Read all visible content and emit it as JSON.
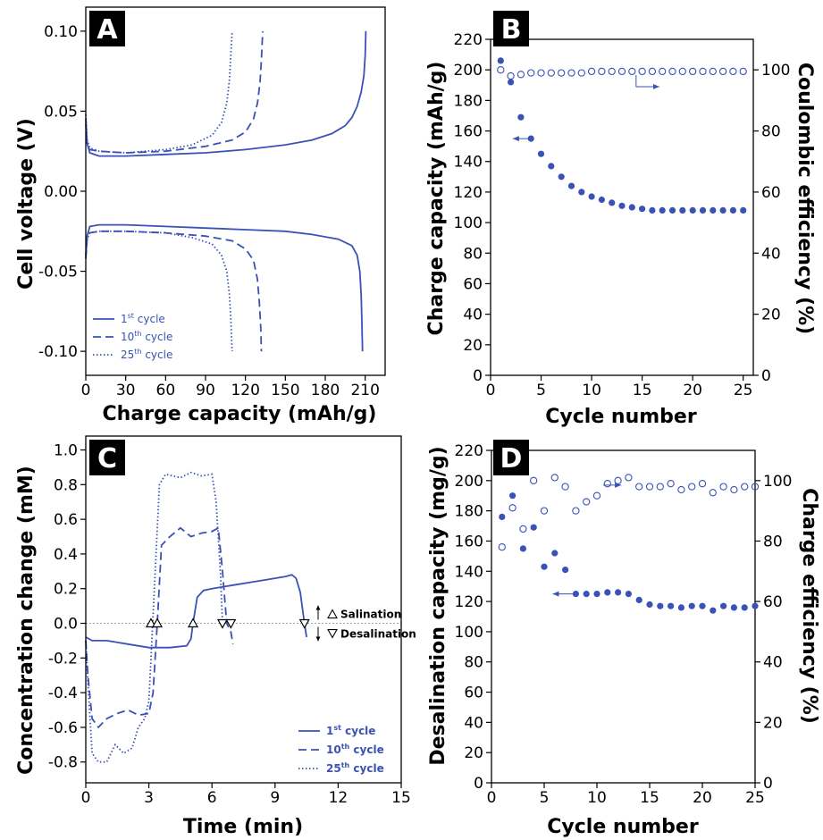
{
  "colors": {
    "series": "#3a52b5",
    "axis": "#000000"
  },
  "chart_data": [
    {
      "panel_label": "A",
      "type": "line",
      "xlabel": "Charge capacity (mAh/g)",
      "ylabel": "Cell voltage (V)",
      "xlim": [
        0,
        225
      ],
      "ylim": [
        -0.115,
        0.115
      ],
      "xticks": [
        0,
        30,
        60,
        90,
        120,
        150,
        180,
        210
      ],
      "yticks": [
        -0.1,
        -0.05,
        0.0,
        0.05,
        0.1
      ],
      "yticks_labels": [
        "-0.10",
        "-0.05",
        "0.00",
        "0.05",
        "0.10"
      ],
      "legend_position": "bottom-left",
      "series": [
        {
          "name": "1st cycle",
          "name_base": "1",
          "name_sup": "st",
          "name_tail": " cycle",
          "dash": "solid",
          "charge": [
            [
              0,
              0.045
            ],
            [
              1,
              0.03
            ],
            [
              3,
              0.024
            ],
            [
              10,
              0.022
            ],
            [
              30,
              0.022
            ],
            [
              60,
              0.023
            ],
            [
              90,
              0.024
            ],
            [
              120,
              0.026
            ],
            [
              150,
              0.029
            ],
            [
              170,
              0.032
            ],
            [
              185,
              0.036
            ],
            [
              195,
              0.041
            ],
            [
              200,
              0.046
            ],
            [
              204,
              0.053
            ],
            [
              207,
              0.062
            ],
            [
              209,
              0.072
            ],
            [
              210,
              0.085
            ],
            [
              210.5,
              0.1
            ]
          ],
          "discharge": [
            [
              0,
              -0.04
            ],
            [
              1,
              -0.028
            ],
            [
              3,
              -0.022
            ],
            [
              10,
              -0.021
            ],
            [
              30,
              -0.021
            ],
            [
              60,
              -0.022
            ],
            [
              90,
              -0.023
            ],
            [
              120,
              -0.024
            ],
            [
              150,
              -0.025
            ],
            [
              170,
              -0.027
            ],
            [
              190,
              -0.03
            ],
            [
              200,
              -0.034
            ],
            [
              204,
              -0.04
            ],
            [
              206,
              -0.05
            ],
            [
              207,
              -0.065
            ],
            [
              207.5,
              -0.08
            ],
            [
              208,
              -0.1
            ]
          ]
        },
        {
          "name": "10th cycle",
          "name_base": "10",
          "name_sup": "th",
          "name_tail": " cycle",
          "dash": "dash",
          "charge": [
            [
              0,
              0.042
            ],
            [
              1,
              0.03
            ],
            [
              3,
              0.026
            ],
            [
              10,
              0.025
            ],
            [
              30,
              0.024
            ],
            [
              60,
              0.025
            ],
            [
              90,
              0.028
            ],
            [
              110,
              0.032
            ],
            [
              120,
              0.037
            ],
            [
              126,
              0.045
            ],
            [
              129,
              0.055
            ],
            [
              131,
              0.068
            ],
            [
              132,
              0.082
            ],
            [
              133,
              0.1
            ]
          ],
          "discharge": [
            [
              0,
              -0.042
            ],
            [
              1,
              -0.03
            ],
            [
              3,
              -0.026
            ],
            [
              10,
              -0.025
            ],
            [
              30,
              -0.025
            ],
            [
              60,
              -0.026
            ],
            [
              90,
              -0.028
            ],
            [
              110,
              -0.031
            ],
            [
              120,
              -0.036
            ],
            [
              126,
              -0.043
            ],
            [
              129,
              -0.055
            ],
            [
              130.5,
              -0.07
            ],
            [
              131.5,
              -0.085
            ],
            [
              132,
              -0.1
            ]
          ]
        },
        {
          "name": "25th cycle",
          "name_base": "25",
          "name_sup": "th",
          "name_tail": " cycle",
          "dash": "dot",
          "charge": [
            [
              0,
              0.048
            ],
            [
              1,
              0.032
            ],
            [
              3,
              0.027
            ],
            [
              10,
              0.025
            ],
            [
              30,
              0.024
            ],
            [
              60,
              0.026
            ],
            [
              80,
              0.029
            ],
            [
              95,
              0.035
            ],
            [
              102,
              0.043
            ],
            [
              106,
              0.055
            ],
            [
              108,
              0.07
            ],
            [
              109,
              0.085
            ],
            [
              110,
              0.1
            ]
          ],
          "discharge": [
            [
              0,
              -0.042
            ],
            [
              1,
              -0.03
            ],
            [
              3,
              -0.026
            ],
            [
              10,
              -0.025
            ],
            [
              30,
              -0.025
            ],
            [
              60,
              -0.026
            ],
            [
              80,
              -0.029
            ],
            [
              95,
              -0.033
            ],
            [
              102,
              -0.04
            ],
            [
              106,
              -0.05
            ],
            [
              108,
              -0.065
            ],
            [
              109,
              -0.08
            ],
            [
              110,
              -0.1
            ]
          ]
        }
      ]
    },
    {
      "panel_label": "B",
      "type": "scatter",
      "xlabel": "Cycle number",
      "ylabel": "Charge capacity (mAh/g)",
      "y2label": "Coulombic efficiency (%)",
      "xlim": [
        0,
        26
      ],
      "ylim": [
        0,
        220
      ],
      "y2lim": [
        0,
        110
      ],
      "xticks": [
        0,
        5,
        10,
        15,
        20,
        25
      ],
      "yticks": [
        0,
        20,
        40,
        60,
        80,
        100,
        120,
        140,
        160,
        180,
        200,
        220
      ],
      "y2ticks": [
        0,
        20,
        40,
        60,
        80,
        100
      ],
      "series": [
        {
          "axis": "left",
          "marker": "filled",
          "x": [
            1,
            2,
            3,
            4,
            5,
            6,
            7,
            8,
            9,
            10,
            11,
            12,
            13,
            14,
            15,
            16,
            17,
            18,
            19,
            20,
            21,
            22,
            23,
            24,
            25
          ],
          "values": [
            206,
            192,
            169,
            155,
            145,
            137,
            130,
            124,
            120,
            117,
            115,
            113,
            111,
            110,
            109,
            108,
            108,
            108,
            108,
            108,
            108,
            108,
            108,
            108,
            108
          ]
        },
        {
          "axis": "right",
          "marker": "open",
          "x": [
            1,
            2,
            3,
            4,
            5,
            6,
            7,
            8,
            9,
            10,
            11,
            12,
            13,
            14,
            15,
            16,
            17,
            18,
            19,
            20,
            21,
            22,
            23,
            24,
            25
          ],
          "values": [
            100,
            98,
            98.5,
            99,
            99,
            99,
            99,
            99,
            99,
            99.5,
            99.5,
            99.5,
            99.5,
            99.5,
            99.5,
            99.5,
            99.5,
            99.5,
            99.5,
            99.5,
            99.5,
            99.5,
            99.5,
            99.5,
            99.5
          ]
        }
      ],
      "arrows": [
        {
          "axis": "left",
          "from": [
            4,
            155
          ],
          "to": [
            2.2,
            155
          ]
        },
        {
          "axis": "right",
          "from": [
            14.4,
            98.3
          ],
          "to": [
            16.7,
            94.5
          ]
        }
      ]
    },
    {
      "panel_label": "C",
      "type": "line",
      "xlabel": "Time (min)",
      "ylabel": "Concentration change (mM)",
      "xlim": [
        0,
        15
      ],
      "ylim": [
        -0.92,
        1.08
      ],
      "xticks": [
        0,
        3,
        6,
        9,
        12,
        15
      ],
      "yticks": [
        -0.8,
        -0.6,
        -0.4,
        -0.2,
        0.0,
        0.2,
        0.4,
        0.6,
        0.8,
        1.0
      ],
      "yticks_labels": [
        "-0.8",
        "-0.6",
        "-0.4",
        "-0.2",
        "0.0",
        "0.2",
        "0.4",
        "0.6",
        "0.8",
        "1.0"
      ],
      "legend_position": "bottom-right",
      "annotation_up": "Salination",
      "annotation_down": "Desalination",
      "salination_markers": [
        3.1,
        3.4,
        5.1
      ],
      "desalination_markers": [
        6.5,
        6.9,
        10.4
      ],
      "series": [
        {
          "name": "1st cycle",
          "name_base": "1",
          "name_sup": "st",
          "name_tail": " cycle",
          "dash": "solid",
          "x": [
            0,
            0.3,
            1,
            2,
            3,
            4,
            4.8,
            5,
            5.1,
            5.3,
            5.6,
            6,
            7,
            8,
            9,
            9.5,
            9.8,
            10,
            10.2,
            10.4,
            10.5
          ],
          "values": [
            -0.08,
            -0.1,
            -0.1,
            -0.12,
            -0.14,
            -0.14,
            -0.13,
            -0.09,
            0.0,
            0.15,
            0.19,
            0.2,
            0.22,
            0.24,
            0.26,
            0.27,
            0.28,
            0.26,
            0.18,
            0.0,
            -0.08
          ]
        },
        {
          "name": "10th cycle",
          "name_base": "10",
          "name_sup": "th",
          "name_tail": " cycle",
          "dash": "dash",
          "x": [
            0,
            0.1,
            0.3,
            0.6,
            1,
            1.5,
            2,
            2.5,
            3,
            3.2,
            3.4,
            3.6,
            4,
            4.5,
            5,
            5.5,
            6,
            6.3,
            6.5,
            6.7,
            6.9,
            7
          ],
          "values": [
            -0.1,
            -0.3,
            -0.55,
            -0.6,
            -0.55,
            -0.52,
            -0.5,
            -0.53,
            -0.52,
            -0.4,
            0.0,
            0.45,
            0.5,
            0.55,
            0.5,
            0.52,
            0.53,
            0.55,
            0.3,
            0.0,
            -0.05,
            -0.12
          ]
        },
        {
          "name": "25th cycle",
          "name_base": "25",
          "name_sup": "th",
          "name_tail": " cycle",
          "dash": "dot",
          "x": [
            0,
            0.1,
            0.3,
            0.6,
            1,
            1.4,
            1.8,
            2.2,
            2.5,
            2.8,
            3,
            3.1,
            3.3,
            3.5,
            3.8,
            4.5,
            5,
            5.5,
            6,
            6.2,
            6.4,
            6.5
          ],
          "values": [
            -0.1,
            -0.35,
            -0.75,
            -0.8,
            -0.8,
            -0.7,
            -0.75,
            -0.72,
            -0.6,
            -0.55,
            -0.45,
            -0.2,
            0.3,
            0.8,
            0.86,
            0.84,
            0.87,
            0.85,
            0.86,
            0.7,
            0.3,
            0.0
          ]
        }
      ]
    },
    {
      "panel_label": "D",
      "type": "scatter",
      "xlabel": "Cycle number",
      "ylabel": "Desalination capacity (mg/g)",
      "y2label": "Charge efficiency (%)",
      "xlim": [
        0,
        25
      ],
      "ylim": [
        0,
        220
      ],
      "y2lim": [
        0,
        110
      ],
      "xticks": [
        0,
        5,
        10,
        15,
        20,
        25
      ],
      "yticks": [
        0,
        20,
        40,
        60,
        80,
        100,
        120,
        140,
        160,
        180,
        200,
        220
      ],
      "y2ticks": [
        0,
        20,
        40,
        60,
        80,
        100
      ],
      "series": [
        {
          "axis": "left",
          "marker": "filled",
          "x": [
            1,
            2,
            3,
            4,
            5,
            6,
            7,
            8,
            9,
            10,
            11,
            12,
            13,
            14,
            15,
            16,
            17,
            18,
            19,
            20,
            21,
            22,
            23,
            24,
            25
          ],
          "values": [
            176,
            190,
            155,
            169,
            143,
            152,
            141,
            125,
            125,
            125,
            126,
            126,
            125,
            121,
            118,
            117,
            117,
            116,
            117,
            117,
            114,
            117,
            116,
            116,
            117
          ]
        },
        {
          "axis": "right",
          "marker": "open",
          "x": [
            1,
            2,
            3,
            4,
            5,
            6,
            7,
            8,
            9,
            10,
            11,
            12,
            13,
            14,
            15,
            16,
            17,
            18,
            19,
            20,
            21,
            22,
            23,
            24,
            25
          ],
          "values": [
            78,
            91,
            84,
            100,
            90,
            101,
            98,
            90,
            93,
            95,
            99,
            100,
            101,
            98,
            98,
            98,
            99,
            97,
            98,
            99,
            96,
            98,
            97,
            98,
            98
          ]
        }
      ],
      "arrows": [
        {
          "axis": "left",
          "from": [
            7.8,
            125
          ],
          "to": [
            5.8,
            125
          ]
        },
        {
          "axis": "right",
          "from": [
            10.6,
            98.5
          ],
          "to": [
            12.3,
            98.5
          ]
        }
      ]
    }
  ]
}
